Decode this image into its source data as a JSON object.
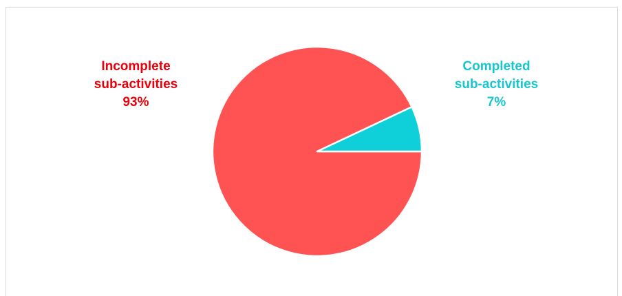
{
  "chart_data": {
    "type": "pie",
    "slices": [
      {
        "label_lines": [
          "Incomplete",
          "sub-activities"
        ],
        "percent_label": "93%",
        "value": 93,
        "color": "#ff5252",
        "label_color": "#e8000b"
      },
      {
        "label_lines": [
          "Completed",
          "sub-activities"
        ],
        "percent_label": "7%",
        "value": 7,
        "color": "#0fd0d9",
        "label_color": "#17c6d0"
      }
    ]
  }
}
